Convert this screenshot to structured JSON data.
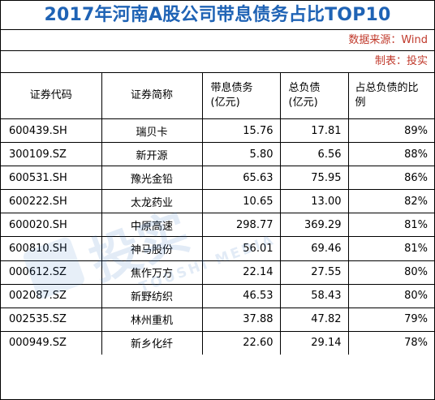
{
  "title": "2017年河南A股公司带息债务占比TOP10",
  "source": "数据来源：Wind",
  "maker": "制表：投实",
  "watermark": {
    "cn": "投实",
    "en": "TOUSHI MEDIA",
    "color": "#3b78c2"
  },
  "colors": {
    "title": "#1f63b5",
    "meta": "#c0392b"
  },
  "table": {
    "headers": {
      "code": "证券代码",
      "name": "证券简称",
      "debt_l1": "带息债务",
      "debt_l2": "(亿元)",
      "total_l1": "总负债",
      "total_l2": "(亿元)",
      "ratio_l1": "占总负债的比",
      "ratio_l2": "例"
    },
    "rows": [
      {
        "code": "600439.SH",
        "name": "瑞贝卡",
        "debt": "15.76",
        "total": "17.81",
        "ratio": "89%"
      },
      {
        "code": "300109.SZ",
        "name": "新开源",
        "debt": "5.80",
        "total": "6.56",
        "ratio": "88%"
      },
      {
        "code": "600531.SH",
        "name": "豫光金铅",
        "debt": "65.63",
        "total": "75.95",
        "ratio": "86%"
      },
      {
        "code": "600222.SH",
        "name": "太龙药业",
        "debt": "10.65",
        "total": "13.00",
        "ratio": "82%"
      },
      {
        "code": "600020.SH",
        "name": "中原高速",
        "debt": "298.77",
        "total": "369.29",
        "ratio": "81%"
      },
      {
        "code": "600810.SH",
        "name": "神马股份",
        "debt": "56.01",
        "total": "69.46",
        "ratio": "81%"
      },
      {
        "code": "000612.SZ",
        "name": "焦作万方",
        "debt": "22.14",
        "total": "27.55",
        "ratio": "80%"
      },
      {
        "code": "002087.SZ",
        "name": "新野纺织",
        "debt": "46.53",
        "total": "58.43",
        "ratio": "80%"
      },
      {
        "code": "002535.SZ",
        "name": "林州重机",
        "debt": "37.88",
        "total": "47.82",
        "ratio": "79%"
      },
      {
        "code": "000949.SZ",
        "name": "新乡化纤",
        "debt": "22.60",
        "total": "29.14",
        "ratio": "78%"
      }
    ]
  }
}
